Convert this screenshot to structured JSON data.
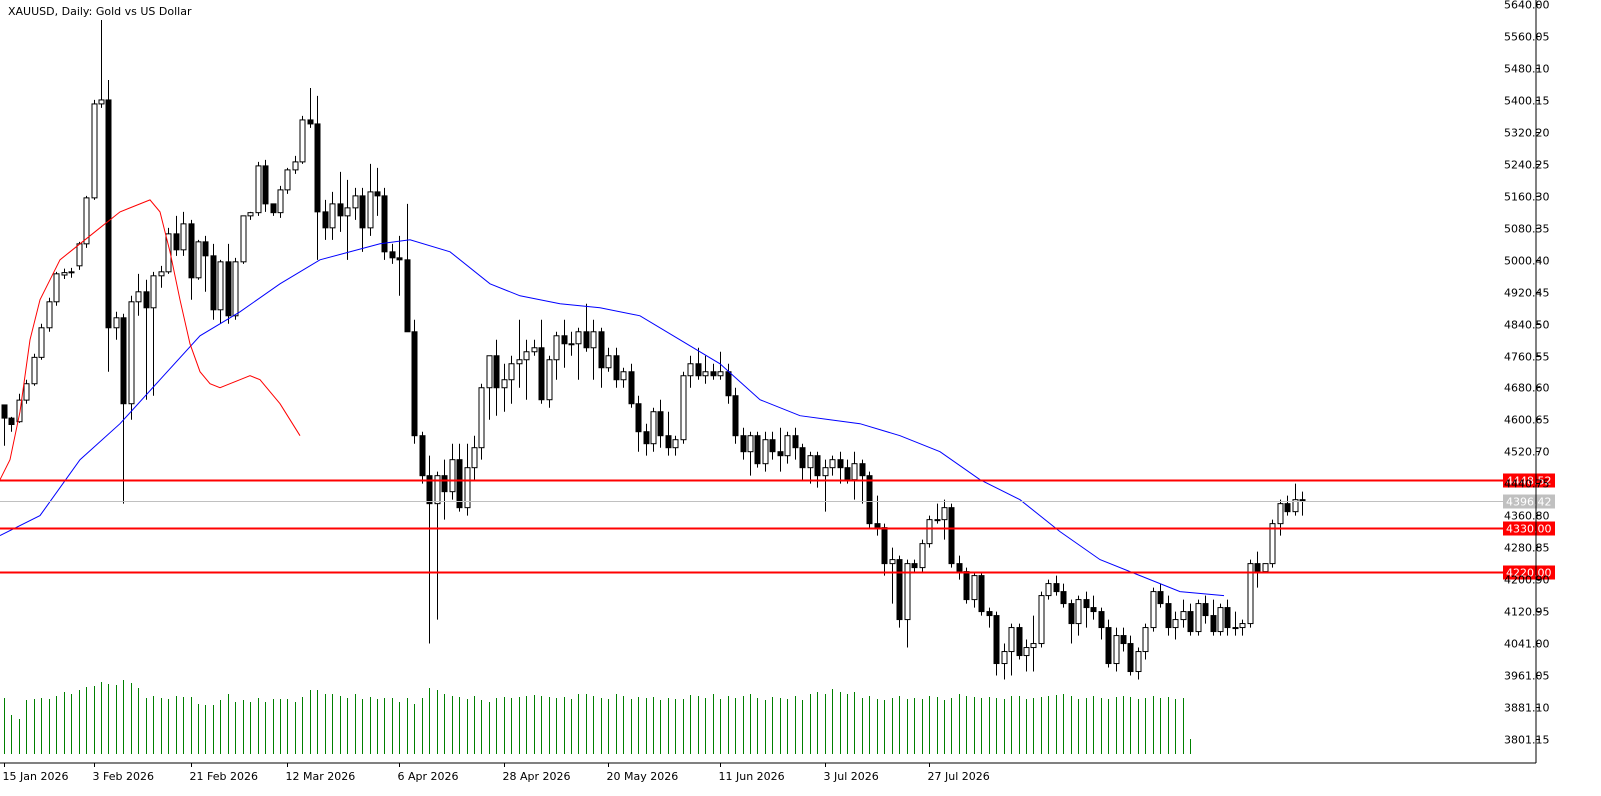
{
  "window": {
    "symbol": "XAUUSD",
    "timeframe": "Daily",
    "title": "XAUUSD, Daily:  Gold vs US Dollar"
  },
  "colors": {
    "background": "#ffffff",
    "candle_up": "#ffffff",
    "candle_down": "#000000",
    "candle_outline": "#000000",
    "ma_fast": "#ff0000",
    "ma_slow": "#0000ff",
    "level_line": "#ff0000",
    "current_price_line": "#c0c0c0",
    "volume": "#008000"
  },
  "chart_data": {
    "type": "candlestick",
    "title": "XAUUSD, Daily:  Gold vs US Dollar",
    "ylim": [
      3761.2,
      5640.0
    ],
    "grid": false,
    "y_ticks": [
      "5640.00",
      "5560.05",
      "5480.10",
      "5400.15",
      "5320.20",
      "5240.25",
      "5160.30",
      "5080.35",
      "5000.40",
      "4920.45",
      "4840.50",
      "4760.55",
      "4680.60",
      "4600.65",
      "4520.70",
      "4440.75",
      "4360.80",
      "4280.85",
      "4200.90",
      "4120.95",
      "4041.00",
      "3961.05",
      "3881.10",
      "3801.15"
    ],
    "x_labels": [
      "15 Jan 2026",
      "3 Feb 2026",
      "21 Feb 2026",
      "12 Mar 2026",
      "6 Apr 2026",
      "28 Apr 2026",
      "20 May 2026",
      "11 Jun 2026",
      "3 Jul 2026",
      "27 Jul 2026"
    ],
    "x_label_candle_index": [
      0,
      12,
      25,
      38,
      53,
      67,
      81,
      96,
      110,
      124
    ],
    "current_price": "4396.42",
    "levels": [
      {
        "price": 4448.52,
        "label": "4448.52"
      },
      {
        "price": 4330.0,
        "label": "4330.00"
      },
      {
        "price": 4220.0,
        "label": "4220.00"
      }
    ],
    "candles": [
      [
        4637,
        4637,
        4535,
        4604
      ],
      [
        4604,
        4607,
        4570,
        4588
      ],
      [
        4595,
        4665,
        4592,
        4649
      ],
      [
        4649,
        4700,
        4640,
        4690
      ],
      [
        4690,
        4765,
        4685,
        4756
      ],
      [
        4756,
        4840,
        4750,
        4830
      ],
      [
        4830,
        4905,
        4820,
        4895
      ],
      [
        4895,
        4970,
        4885,
        4965
      ],
      [
        4962,
        4978,
        4952,
        4968
      ],
      [
        4968,
        4980,
        4955,
        4970
      ],
      [
        4985,
        5045,
        4975,
        5040
      ],
      [
        5040,
        5160,
        5030,
        5155
      ],
      [
        5155,
        5400,
        5150,
        5390
      ],
      [
        5390,
        5600,
        5380,
        5400
      ],
      [
        5400,
        5450,
        4720,
        4830
      ],
      [
        4830,
        4870,
        4800,
        4855
      ],
      [
        4855,
        4865,
        4390,
        4640
      ],
      [
        4640,
        4910,
        4600,
        4895
      ],
      [
        4895,
        4965,
        4860,
        4920
      ],
      [
        4920,
        4950,
        4650,
        4880
      ],
      [
        4880,
        4970,
        4660,
        4960
      ],
      [
        4960,
        4985,
        4930,
        4970
      ],
      [
        4970,
        5080,
        4965,
        5065
      ],
      [
        5065,
        5110,
        5010,
        5025
      ],
      [
        5025,
        5120,
        5010,
        5090
      ],
      [
        5090,
        5100,
        4900,
        4955
      ],
      [
        4955,
        5050,
        4950,
        5045
      ],
      [
        5045,
        5060,
        4920,
        5010
      ],
      [
        5010,
        5040,
        4850,
        4875
      ],
      [
        4875,
        5000,
        4840,
        4995
      ],
      [
        4995,
        5040,
        4840,
        4860
      ],
      [
        4860,
        5005,
        4850,
        4995
      ],
      [
        4995,
        5110,
        4990,
        5110
      ],
      [
        5110,
        5120,
        5100,
        5118
      ],
      [
        5118,
        5245,
        5110,
        5235
      ],
      [
        5235,
        5250,
        5120,
        5140
      ],
      [
        5140,
        5140,
        5110,
        5118
      ],
      [
        5118,
        5185,
        5105,
        5175
      ],
      [
        5175,
        5230,
        5165,
        5225
      ],
      [
        5225,
        5260,
        5215,
        5245
      ],
      [
        5245,
        5360,
        5240,
        5350
      ],
      [
        5350,
        5430,
        5330,
        5340
      ],
      [
        5340,
        5410,
        5000,
        5120
      ],
      [
        5120,
        5150,
        5050,
        5080
      ],
      [
        5080,
        5170,
        5050,
        5140
      ],
      [
        5140,
        5220,
        5070,
        5110
      ],
      [
        5110,
        5200,
        5000,
        5130
      ],
      [
        5130,
        5180,
        5100,
        5160
      ],
      [
        5160,
        5180,
        5020,
        5080
      ],
      [
        5080,
        5240,
        5060,
        5170
      ],
      [
        5170,
        5230,
        5110,
        5160
      ],
      [
        5160,
        5180,
        5000,
        5020
      ],
      [
        5020,
        5040,
        4990,
        5005
      ],
      [
        5005,
        5060,
        4910,
        5000
      ],
      [
        5000,
        5140,
        4820,
        4820
      ],
      [
        4820,
        4850,
        4540,
        4560
      ],
      [
        4560,
        4570,
        4440,
        4460
      ],
      [
        4460,
        4510,
        4040,
        4390
      ],
      [
        4390,
        4470,
        4100,
        4460
      ],
      [
        4460,
        4500,
        4350,
        4420
      ],
      [
        4420,
        4540,
        4400,
        4500
      ],
      [
        4500,
        4540,
        4370,
        4380
      ],
      [
        4380,
        4540,
        4360,
        4480
      ],
      [
        4480,
        4560,
        4450,
        4530
      ],
      [
        4530,
        4690,
        4500,
        4680
      ],
      [
        4680,
        4760,
        4600,
        4760
      ],
      [
        4760,
        4800,
        4610,
        4680
      ],
      [
        4680,
        4740,
        4620,
        4700
      ],
      [
        4700,
        4760,
        4640,
        4740
      ],
      [
        4740,
        4850,
        4680,
        4750
      ],
      [
        4750,
        4800,
        4650,
        4770
      ],
      [
        4770,
        4800,
        4760,
        4780
      ],
      [
        4780,
        4850,
        4640,
        4650
      ],
      [
        4650,
        4760,
        4630,
        4750
      ],
      [
        4750,
        4820,
        4700,
        4810
      ],
      [
        4810,
        4850,
        4730,
        4790
      ],
      [
        4790,
        4820,
        4760,
        4790
      ],
      [
        4790,
        4830,
        4700,
        4820
      ],
      [
        4820,
        4890,
        4770,
        4780
      ],
      [
        4780,
        4850,
        4700,
        4820
      ],
      [
        4820,
        4830,
        4680,
        4730
      ],
      [
        4730,
        4780,
        4720,
        4760
      ],
      [
        4760,
        4780,
        4680,
        4700
      ],
      [
        4700,
        4730,
        4680,
        4720
      ],
      [
        4720,
        4740,
        4630,
        4640
      ],
      [
        4640,
        4660,
        4520,
        4570
      ],
      [
        4570,
        4590,
        4510,
        4540
      ],
      [
        4540,
        4630,
        4520,
        4620
      ],
      [
        4620,
        4650,
        4530,
        4560
      ],
      [
        4560,
        4620,
        4510,
        4530
      ],
      [
        4530,
        4560,
        4510,
        4550
      ],
      [
        4550,
        4720,
        4540,
        4710
      ],
      [
        4710,
        4760,
        4680,
        4740
      ],
      [
        4740,
        4780,
        4700,
        4710
      ],
      [
        4710,
        4760,
        4690,
        4720
      ],
      [
        4720,
        4740,
        4700,
        4710
      ],
      [
        4710,
        4770,
        4700,
        4720
      ],
      [
        4720,
        4740,
        4640,
        4660
      ],
      [
        4660,
        4680,
        4540,
        4560
      ],
      [
        4560,
        4580,
        4500,
        4520
      ],
      [
        4520,
        4570,
        4460,
        4560
      ],
      [
        4560,
        4570,
        4480,
        4490
      ],
      [
        4490,
        4570,
        4470,
        4550
      ],
      [
        4550,
        4570,
        4500,
        4520
      ],
      [
        4520,
        4580,
        4470,
        4510
      ],
      [
        4510,
        4570,
        4490,
        4560
      ],
      [
        4560,
        4580,
        4500,
        4530
      ],
      [
        4530,
        4540,
        4450,
        4480
      ],
      [
        4480,
        4520,
        4440,
        4510
      ],
      [
        4510,
        4520,
        4430,
        4460
      ],
      [
        4460,
        4500,
        4370,
        4480
      ],
      [
        4480,
        4510,
        4460,
        4500
      ],
      [
        4500,
        4520,
        4440,
        4480
      ],
      [
        4480,
        4500,
        4440,
        4450
      ],
      [
        4450,
        4520,
        4400,
        4490
      ],
      [
        4490,
        4500,
        4390,
        4460
      ],
      [
        4460,
        4470,
        4330,
        4340
      ],
      [
        4340,
        4410,
        4310,
        4330
      ],
      [
        4330,
        4340,
        4210,
        4240
      ],
      [
        4240,
        4280,
        4140,
        4250
      ],
      [
        4250,
        4260,
        4080,
        4100
      ],
      [
        4100,
        4250,
        4030,
        4240
      ],
      [
        4240,
        4250,
        4220,
        4230
      ],
      [
        4230,
        4300,
        4220,
        4290
      ],
      [
        4290,
        4360,
        4280,
        4350
      ],
      [
        4350,
        4390,
        4340,
        4350
      ],
      [
        4350,
        4400,
        4300,
        4380
      ],
      [
        4380,
        4390,
        4230,
        4240
      ],
      [
        4240,
        4260,
        4200,
        4220
      ],
      [
        4220,
        4230,
        4140,
        4150
      ],
      [
        4150,
        4220,
        4130,
        4210
      ],
      [
        4210,
        4220,
        4110,
        4120
      ],
      [
        4120,
        4130,
        4080,
        4110
      ],
      [
        4110,
        4120,
        3960,
        3990
      ],
      [
        3990,
        4040,
        3950,
        4020
      ],
      [
        4020,
        4090,
        3960,
        4080
      ],
      [
        4080,
        4090,
        4000,
        4010
      ],
      [
        4010,
        4050,
        3970,
        4030
      ],
      [
        4030,
        4110,
        3970,
        4040
      ],
      [
        4040,
        4170,
        4030,
        4160
      ],
      [
        4160,
        4200,
        4150,
        4190
      ],
      [
        4190,
        4210,
        4160,
        4170
      ],
      [
        4170,
        4190,
        4130,
        4140
      ],
      [
        4140,
        4150,
        4040,
        4090
      ],
      [
        4090,
        4160,
        4060,
        4150
      ],
      [
        4150,
        4170,
        4080,
        4130
      ],
      [
        4130,
        4160,
        4100,
        4120
      ],
      [
        4120,
        4130,
        4050,
        4080
      ],
      [
        4080,
        4100,
        3980,
        3990
      ],
      [
        3990,
        4080,
        3970,
        4060
      ],
      [
        4060,
        4080,
        4020,
        4040
      ],
      [
        4040,
        4060,
        3960,
        3970
      ],
      [
        3970,
        4030,
        3950,
        4020
      ],
      [
        4020,
        4090,
        4000,
        4080
      ],
      [
        4080,
        4180,
        4070,
        4170
      ],
      [
        4170,
        4190,
        4130,
        4140
      ],
      [
        4140,
        4160,
        4060,
        4080
      ],
      [
        4080,
        4120,
        4050,
        4100
      ],
      [
        4100,
        4150,
        4080,
        4120
      ],
      [
        4120,
        4140,
        4060,
        4070
      ],
      [
        4070,
        4150,
        4060,
        4140
      ],
      [
        4140,
        4160,
        4090,
        4110
      ],
      [
        4110,
        4150,
        4060,
        4070
      ],
      [
        4070,
        4140,
        4060,
        4130
      ],
      [
        4130,
        4150,
        4060,
        4080
      ],
      [
        4080,
        4120,
        4060,
        4080
      ],
      [
        4080,
        4100,
        4060,
        4090
      ],
      [
        4090,
        4250,
        4080,
        4240
      ],
      [
        4240,
        4270,
        4180,
        4220
      ],
      [
        4220,
        4240,
        4220,
        4240
      ],
      [
        4240,
        4350,
        4230,
        4340
      ],
      [
        4340,
        4400,
        4310,
        4390
      ],
      [
        4390,
        4410,
        4360,
        4370
      ],
      [
        4370,
        4440,
        4360,
        4400
      ],
      [
        4400,
        4420,
        4360,
        4396
      ]
    ],
    "ma_fast": [
      [
        0,
        4450
      ],
      [
        10,
        4500
      ],
      [
        20,
        4620
      ],
      [
        30,
        4800
      ],
      [
        40,
        4900
      ],
      [
        50,
        4950
      ],
      [
        60,
        5000
      ],
      [
        70,
        5020
      ],
      [
        80,
        5040
      ],
      [
        90,
        5060
      ],
      [
        100,
        5080
      ],
      [
        110,
        5100
      ],
      [
        120,
        5120
      ],
      [
        130,
        5130
      ],
      [
        140,
        5140
      ],
      [
        150,
        5150
      ],
      [
        160,
        5120
      ],
      [
        170,
        5020
      ],
      [
        180,
        4900
      ],
      [
        190,
        4790
      ],
      [
        200,
        4720
      ],
      [
        210,
        4690
      ],
      [
        220,
        4680
      ],
      [
        230,
        4690
      ],
      [
        240,
        4700
      ],
      [
        250,
        4710
      ],
      [
        260,
        4700
      ],
      [
        270,
        4670
      ],
      [
        280,
        4640
      ],
      [
        290,
        4600
      ],
      [
        300,
        4560
      ]
    ],
    "ma_slow": [
      [
        0,
        4310
      ],
      [
        40,
        4360
      ],
      [
        80,
        4500
      ],
      [
        120,
        4590
      ],
      [
        160,
        4700
      ],
      [
        200,
        4810
      ],
      [
        240,
        4870
      ],
      [
        280,
        4940
      ],
      [
        320,
        5000
      ],
      [
        380,
        5040
      ],
      [
        410,
        5050
      ],
      [
        450,
        5020
      ],
      [
        490,
        4940
      ],
      [
        520,
        4910
      ],
      [
        560,
        4890
      ],
      [
        600,
        4880
      ],
      [
        640,
        4860
      ],
      [
        680,
        4800
      ],
      [
        720,
        4740
      ],
      [
        760,
        4650
      ],
      [
        800,
        4610
      ],
      [
        830,
        4600
      ],
      [
        860,
        4590
      ],
      [
        900,
        4560
      ],
      [
        940,
        4520
      ],
      [
        980,
        4450
      ],
      [
        1020,
        4400
      ],
      [
        1060,
        4320
      ],
      [
        1100,
        4250
      ],
      [
        1140,
        4210
      ],
      [
        1180,
        4170
      ],
      [
        1224,
        4160
      ]
    ],
    "volume": [
      56,
      39,
      35,
      54,
      55,
      56,
      55,
      58,
      62,
      60,
      64,
      67,
      68,
      72,
      70,
      69,
      74,
      71,
      66,
      56,
      58,
      56,
      55,
      58,
      57,
      57,
      50,
      49,
      49,
      54,
      60,
      52,
      54,
      52,
      56,
      52,
      55,
      55,
      55,
      52,
      57,
      64,
      64,
      60,
      60,
      58,
      56,
      60,
      55,
      57,
      55,
      56,
      56,
      52,
      56,
      50,
      56,
      66,
      64,
      60,
      58,
      57,
      55,
      58,
      54,
      52,
      56,
      57,
      56,
      57,
      58,
      59,
      58,
      57,
      56,
      57,
      55,
      60,
      60,
      58,
      56,
      55,
      60,
      58,
      55,
      57,
      56,
      57,
      54,
      56,
      55,
      55,
      59,
      58,
      56,
      60,
      55,
      58,
      56,
      58,
      60,
      56,
      54,
      57,
      56,
      55,
      58,
      54,
      60,
      62,
      60,
      65,
      62,
      60,
      62,
      56,
      58,
      55,
      54,
      56,
      58,
      55,
      56,
      55,
      58,
      57,
      54,
      56,
      60,
      58,
      57,
      56,
      57,
      56,
      55,
      58,
      58,
      55,
      56,
      57,
      58,
      59,
      60,
      58,
      55,
      56,
      58,
      56,
      55,
      57,
      58,
      57,
      55,
      56,
      58,
      56,
      57,
      55,
      56,
      15
    ]
  }
}
